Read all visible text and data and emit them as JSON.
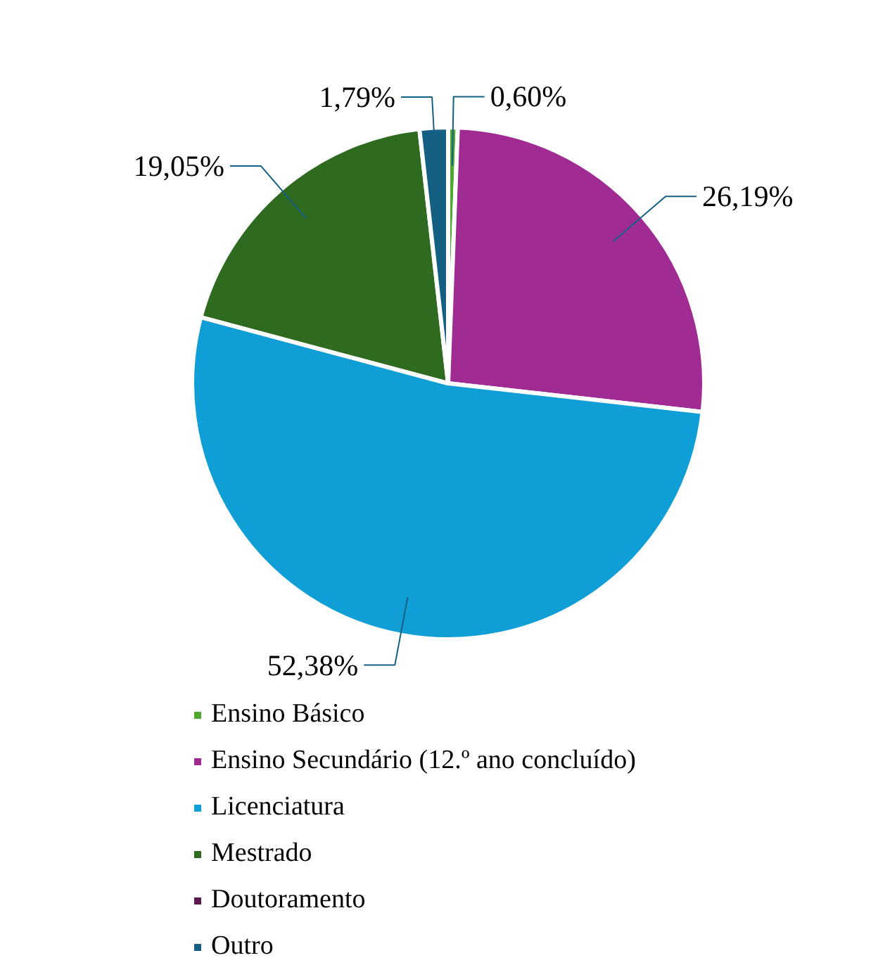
{
  "chart_data": {
    "type": "pie",
    "categories": [
      "Ensino Básico",
      "Ensino Secundário (12.º ano concluído)",
      "Licenciatura",
      "Mestrado",
      "Doutoramento",
      "Outro"
    ],
    "values": [
      0.6,
      26.19,
      52.38,
      19.05,
      0,
      1.79
    ],
    "value_labels": [
      "0,60%",
      "26,19%",
      "52,38%",
      "19,05%",
      null,
      "1,79%"
    ],
    "colors": [
      "#4ea72e",
      "#a02b93",
      "#0f9ed5",
      "#2e6a1f",
      "#5a1a50",
      "#145f82"
    ],
    "legend": "bottom"
  }
}
